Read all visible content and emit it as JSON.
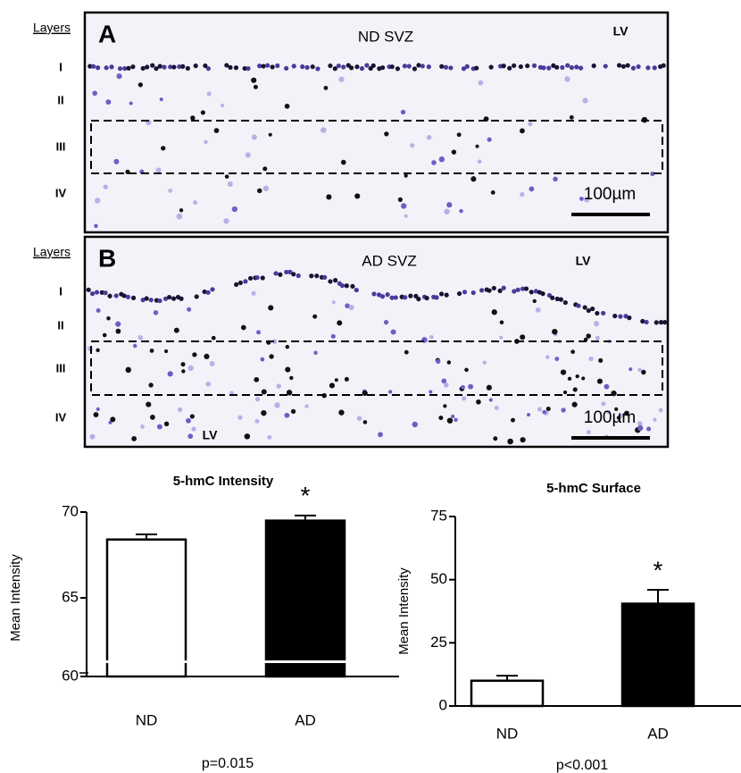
{
  "panels": [
    {
      "letter": "A",
      "title": "ND SVZ",
      "layers_heading": "Layers",
      "layers": [
        "I",
        "II",
        "III",
        "IV"
      ],
      "lv_labels": [
        "LV"
      ],
      "scale_bar": "100µm"
    },
    {
      "letter": "B",
      "title": "AD SVZ",
      "layers_heading": "Layers",
      "layers": [
        "I",
        "II",
        "III",
        "IV"
      ],
      "lv_labels": [
        "LV",
        "LV"
      ],
      "scale_bar": "100µm"
    }
  ],
  "chart_data": [
    {
      "type": "bar",
      "title": "5-hmC Intensity",
      "y_label": "Mean Intensity",
      "categories": [
        "ND",
        "AD"
      ],
      "values": [
        68.4,
        69.5
      ],
      "errors": [
        0.3,
        0.3
      ],
      "colors": [
        "#ffffff",
        "#000000"
      ],
      "ylim": [
        60,
        70
      ],
      "yticks": [
        60,
        65,
        70
      ],
      "axis_break": true,
      "annotations": [
        {
          "text": "*",
          "category": "AD"
        }
      ],
      "note": "p=0.015"
    },
    {
      "type": "bar",
      "title": "5-hmC Surface",
      "y_label": "Mean Intensity",
      "categories": [
        "ND",
        "AD"
      ],
      "values": [
        10,
        40.5
      ],
      "errors": [
        2,
        5.5
      ],
      "colors": [
        "#ffffff",
        "#000000"
      ],
      "ylim": [
        0,
        75
      ],
      "yticks": [
        0,
        25,
        50,
        75
      ],
      "axis_break": false,
      "annotations": [
        {
          "text": "*",
          "category": "AD"
        }
      ],
      "note": "p<0.001"
    }
  ]
}
